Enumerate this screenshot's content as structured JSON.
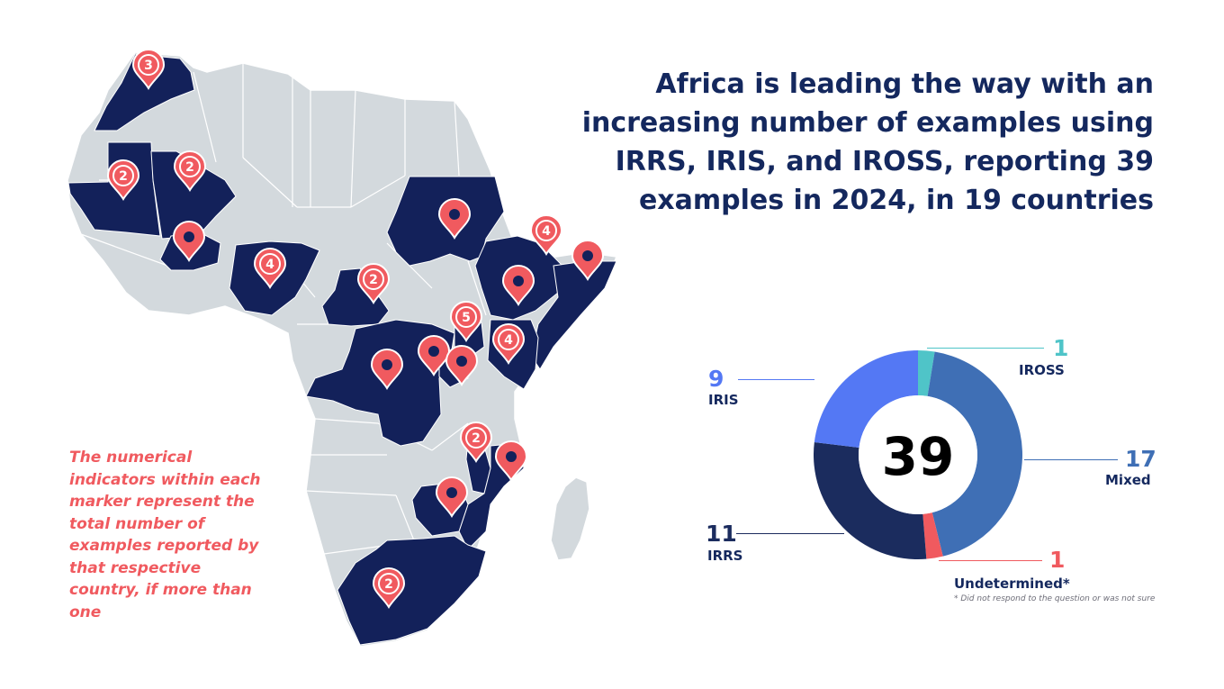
{
  "title": "Africa is leading the way with an increasing number of examples using IRRS, IRIS, and IROSS, reporting 39 examples in 2024, in 19 countries",
  "note": "The numerical indicators within each marker represent the total number of examples reported by that respective country, if more than one",
  "colors": {
    "land": "#d3d9dd",
    "highlight": "#13215a",
    "marker": "#f05a5f"
  },
  "markers": [
    {
      "country_hint": "morocco",
      "label": "3"
    },
    {
      "country_hint": "mauritania",
      "label": "2"
    },
    {
      "country_hint": "mali",
      "label": "2"
    },
    {
      "country_hint": "burkina-faso",
      "label": ""
    },
    {
      "country_hint": "nigeria",
      "label": "4"
    },
    {
      "country_hint": "cameroon",
      "label": "2"
    },
    {
      "country_hint": "sudan",
      "label": ""
    },
    {
      "country_hint": "eritrea",
      "label": "4"
    },
    {
      "country_hint": "somalia",
      "label": ""
    },
    {
      "country_hint": "ethiopia",
      "label": ""
    },
    {
      "country_hint": "uganda",
      "label": "5"
    },
    {
      "country_hint": "kenya",
      "label": "4"
    },
    {
      "country_hint": "drc",
      "label": ""
    },
    {
      "country_hint": "rwanda",
      "label": ""
    },
    {
      "country_hint": "burundi",
      "label": ""
    },
    {
      "country_hint": "malawi",
      "label": "2"
    },
    {
      "country_hint": "mozambique",
      "label": ""
    },
    {
      "country_hint": "zimbabwe",
      "label": ""
    },
    {
      "country_hint": "south-africa",
      "label": "2"
    }
  ],
  "chart_data": {
    "type": "pie",
    "total": "39",
    "categories": [
      "IROSS",
      "Mixed",
      "Undetermined*",
      "IRRS",
      "IRIS"
    ],
    "values": [
      1,
      17,
      1,
      11,
      9
    ],
    "colors": [
      "#4fc4c8",
      "#3f6fb5",
      "#f05a5f",
      "#1b2c5e",
      "#5478f4"
    ],
    "footnote": "* Did not respond to the question or was not sure"
  }
}
